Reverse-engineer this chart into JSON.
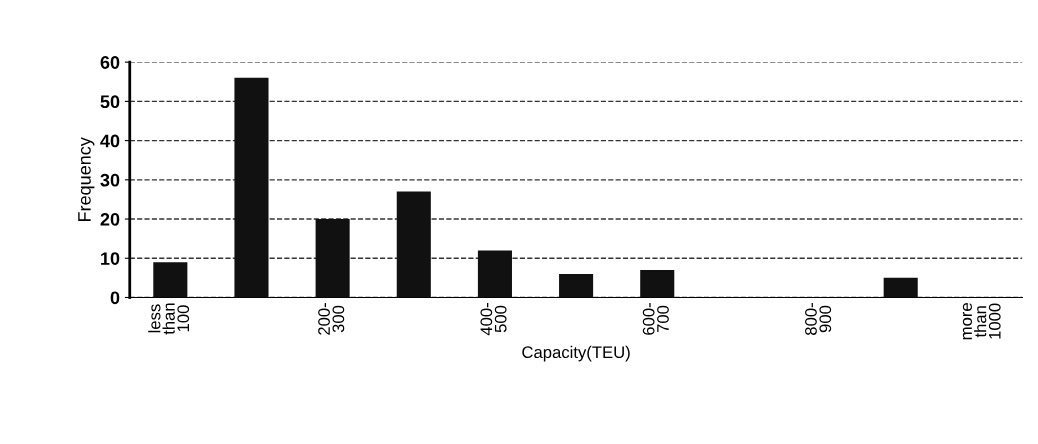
{
  "chart_data": {
    "type": "bar",
    "xlabel": "Capacity(TEU)",
    "ylabel": "Frequency",
    "categories": [
      "less\nthan\n100",
      null,
      "200-\n300",
      null,
      "400-\n500",
      null,
      "600-\n700",
      null,
      "800-\n900",
      null,
      "more\nthan\n1000"
    ],
    "values": [
      9,
      56,
      20,
      27,
      12,
      6,
      7,
      0,
      0,
      5,
      0
    ],
    "color": "#111111",
    "ylim": [
      0,
      60
    ],
    "yticks": [
      0,
      10,
      20,
      30,
      40,
      50,
      60
    ],
    "grid": "y",
    "line_style": "dashed"
  }
}
